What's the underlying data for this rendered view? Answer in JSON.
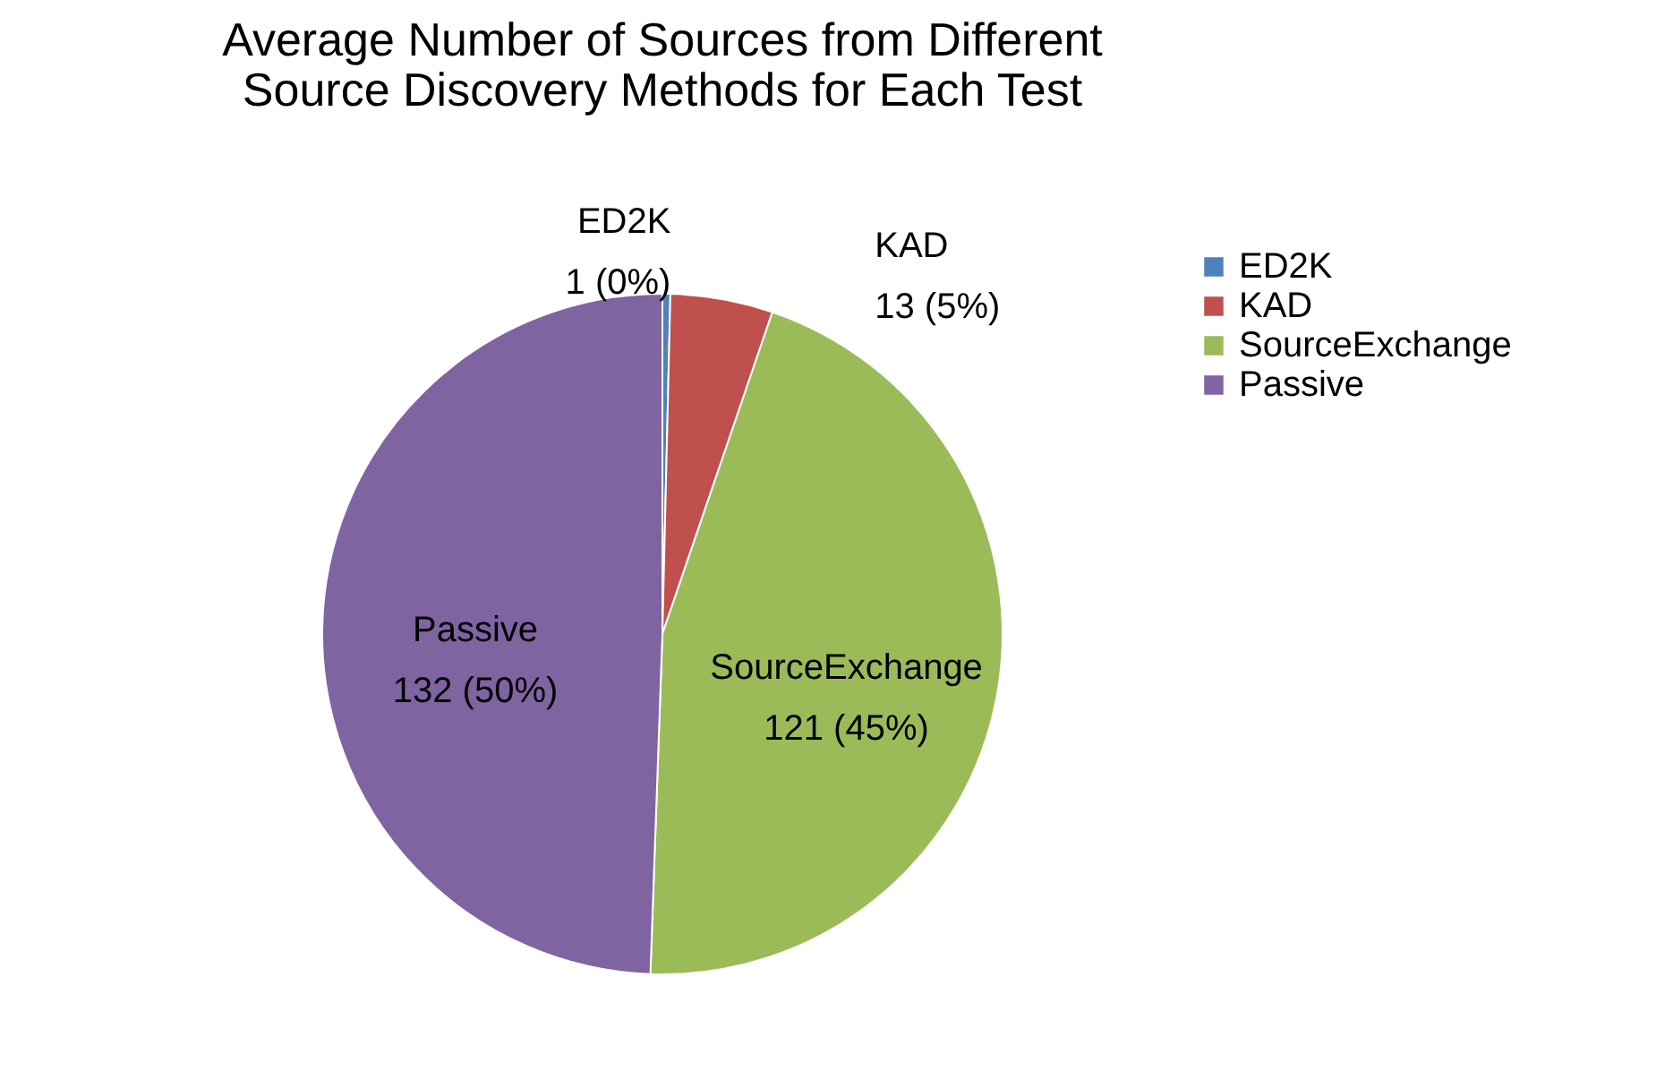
{
  "chart_data": {
    "type": "pie",
    "title": "Average Number of Sources from Different Source Discovery Methods for Each Test",
    "categories": [
      "ED2K",
      "KAD",
      "SourceExchange",
      "Passive"
    ],
    "values": [
      1,
      13,
      121,
      132
    ],
    "value_labels": [
      "1 (0%)",
      "13 (5%)",
      "121 (45%)",
      "132 (50%)"
    ],
    "colors": [
      "#4f81bd",
      "#c0504d",
      "#9bbb59",
      "#8064a2"
    ],
    "legend": "right"
  }
}
